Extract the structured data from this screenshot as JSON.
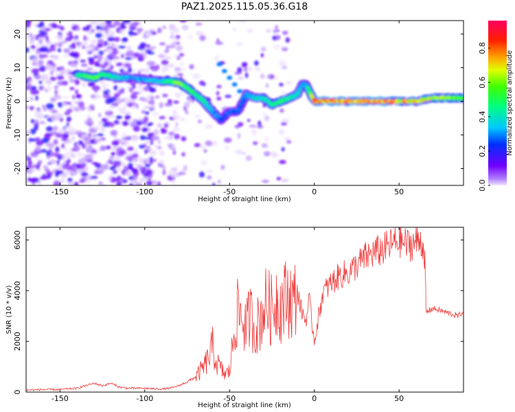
{
  "title": "PAZ1.2025.115.05.36.G18",
  "chart_data": [
    {
      "type": "heatmap",
      "xlabel": "Height of straight line (km)",
      "ylabel": "Frequency (Hz)",
      "xlim": [
        -170,
        88
      ],
      "ylim": [
        -25,
        24
      ],
      "xticks": [
        -150,
        -100,
        -50,
        0,
        50
      ],
      "yticks": [
        -20,
        -10,
        0,
        10,
        20
      ],
      "colorbar": {
        "label": "Normalized spectral amplitude",
        "range": [
          0,
          0.96
        ],
        "ticks": [
          0.0,
          0.2,
          0.4,
          0.6,
          0.8
        ],
        "colormap": "rainbow (violet - blue - cyan - green - yellow - red - magenta)"
      },
      "ridge": {
        "x": [
          -140,
          -135,
          -130,
          -125,
          -120,
          -115,
          -110,
          -100,
          -90,
          -85,
          -80,
          -75,
          -70,
          -65,
          -62,
          -58,
          -55,
          -50,
          -45,
          -40,
          -35,
          -30,
          -25,
          -20,
          -15,
          -10,
          -7,
          -5,
          0,
          10,
          20,
          30,
          40,
          50,
          60,
          70,
          80,
          88
        ],
        "freq": [
          8,
          7.5,
          7,
          8,
          7.5,
          7,
          7,
          6.5,
          6,
          6,
          5.5,
          4,
          2,
          0,
          -2,
          -4,
          -5.5,
          -3,
          -3,
          2,
          1,
          1,
          -1,
          0,
          1,
          2,
          5,
          5,
          0,
          0,
          0,
          0,
          0,
          0,
          0,
          1,
          1,
          1
        ],
        "amp": [
          0.5,
          0.55,
          0.6,
          0.55,
          0.5,
          0.4,
          0.35,
          0.35,
          0.4,
          0.55,
          0.7,
          0.55,
          0.5,
          0.45,
          0.4,
          0.35,
          0.3,
          0.3,
          0.3,
          0.35,
          0.4,
          0.45,
          0.5,
          0.55,
          0.5,
          0.45,
          0.35,
          0.35,
          0.85,
          0.9,
          0.85,
          0.88,
          0.9,
          0.8,
          0.75,
          0.7,
          0.65,
          0.6
        ]
      }
    },
    {
      "type": "line",
      "xlabel": "Height of straight line (km)",
      "ylabel": "SNR (10 * v/v)",
      "xlim": [
        -170,
        88
      ],
      "ylim": [
        0,
        6500
      ],
      "xticks": [
        -150,
        -100,
        -50,
        0,
        50
      ],
      "yticks": [
        0,
        2000,
        4000,
        6000
      ],
      "color": "#ee3333",
      "series": [
        {
          "x": [
            -170,
            -160,
            -150,
            -140,
            -130,
            -125,
            -120,
            -115,
            -110,
            -100,
            -90,
            -85,
            -80,
            -75,
            -70,
            -65,
            -62,
            -60,
            -58,
            -55,
            -53,
            -50,
            -47,
            -45,
            -43,
            -40,
            -38,
            -35,
            -32,
            -30,
            -28,
            -25,
            -22,
            -20,
            -18,
            -15,
            -12,
            -10,
            -8,
            -5,
            -3,
            0,
            5,
            10,
            15,
            20,
            25,
            30,
            35,
            40,
            45,
            50,
            55,
            60,
            63,
            65,
            66,
            67,
            70,
            75,
            80,
            85,
            88
          ],
          "y": [
            80,
            100,
            100,
            150,
            350,
            250,
            350,
            200,
            150,
            150,
            120,
            150,
            250,
            400,
            600,
            1000,
            1400,
            1800,
            1200,
            900,
            700,
            800,
            2500,
            3200,
            3000,
            2500,
            3100,
            2500,
            2800,
            3300,
            3500,
            3200,
            3800,
            3400,
            3600,
            3800,
            3500,
            4000,
            3300,
            2800,
            3600,
            2000,
            3900,
            4300,
            4600,
            4700,
            5000,
            5300,
            5500,
            5600,
            5800,
            6000,
            5800,
            5900,
            6000,
            5500,
            3100,
            3200,
            3300,
            3200,
            3100,
            3000,
            3200
          ]
        }
      ]
    }
  ]
}
